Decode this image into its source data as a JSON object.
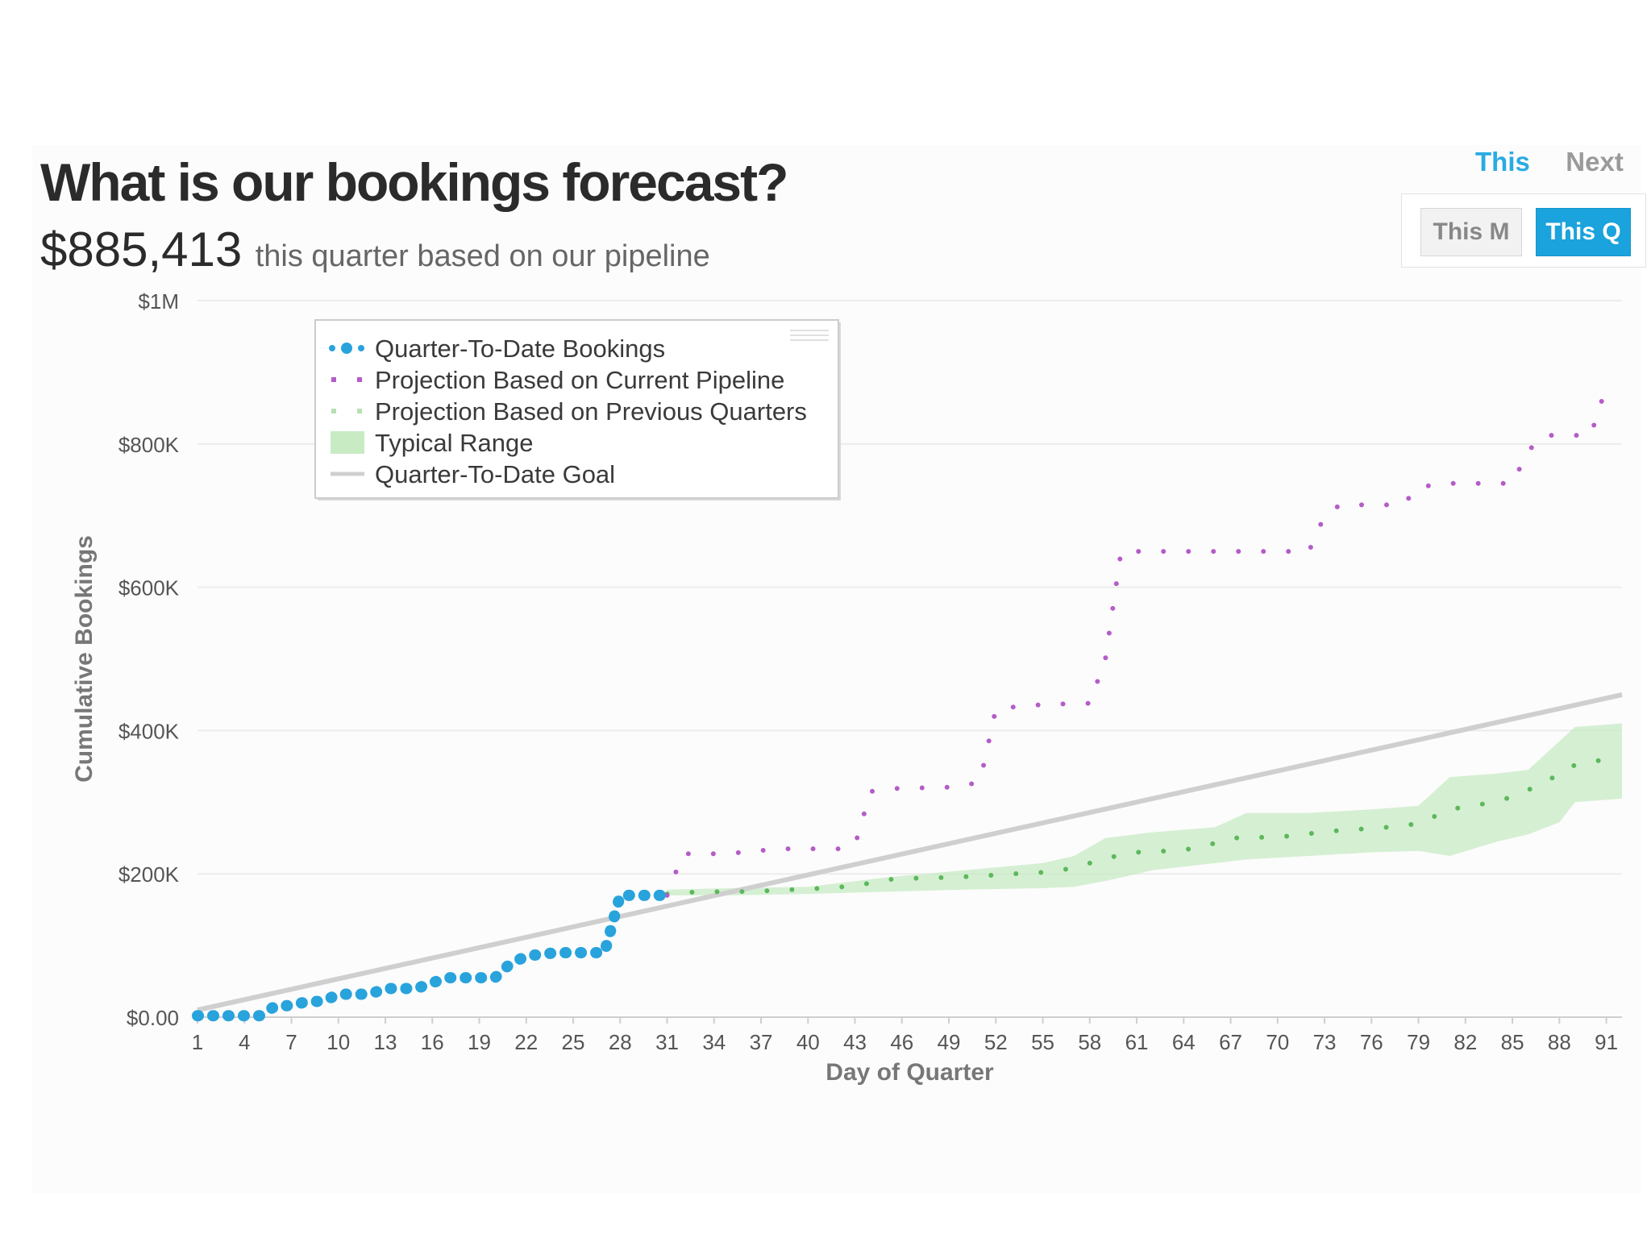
{
  "header": {
    "title": "What is our bookings forecast?",
    "amount": "$885,413",
    "caption": "this quarter based on our pipeline"
  },
  "period_toggle": {
    "this_label": "This",
    "next_label": "Next"
  },
  "range_buttons": {
    "month_label": "This M",
    "quarter_label": "This Q"
  },
  "colors": {
    "qtd": "#29a3dc",
    "pipeline": "#b45cc8",
    "previous": "#5cb85c",
    "range": "#c8ebc4",
    "goal": "#cfcfcf",
    "active": "#29abe2"
  },
  "chart_data": {
    "type": "line",
    "title": "",
    "xlabel": "Day of Quarter",
    "ylabel": "Cumulative Bookings",
    "xlim": [
      1,
      92
    ],
    "ylim": [
      0,
      1000000
    ],
    "x_ticks": [
      1,
      4,
      7,
      10,
      13,
      16,
      19,
      22,
      25,
      28,
      31,
      34,
      37,
      40,
      43,
      46,
      49,
      52,
      55,
      58,
      61,
      64,
      67,
      70,
      73,
      76,
      79,
      82,
      85,
      88,
      91
    ],
    "y_ticks": [
      {
        "value": 0,
        "label": "$0.00"
      },
      {
        "value": 200000,
        "label": "$200K"
      },
      {
        "value": 400000,
        "label": "$400K"
      },
      {
        "value": 600000,
        "label": "$600K"
      },
      {
        "value": 800000,
        "label": "$800K"
      },
      {
        "value": 1000000,
        "label": "$1M"
      }
    ],
    "legend_position": "top-left",
    "series": [
      {
        "name": "Quarter-To-Date Bookings",
        "style": "dotted-large",
        "points": [
          [
            1,
            2000
          ],
          [
            2,
            2000
          ],
          [
            3,
            2000
          ],
          [
            4,
            2000
          ],
          [
            5,
            2000
          ],
          [
            6,
            16000
          ],
          [
            7,
            16000
          ],
          [
            8,
            22000
          ],
          [
            9,
            22000
          ],
          [
            10,
            32000
          ],
          [
            11,
            32000
          ],
          [
            12,
            32000
          ],
          [
            13,
            40000
          ],
          [
            14,
            40000
          ],
          [
            15,
            40000
          ],
          [
            16,
            48000
          ],
          [
            17,
            55000
          ],
          [
            18,
            55000
          ],
          [
            19,
            55000
          ],
          [
            20,
            55000
          ],
          [
            21,
            75000
          ],
          [
            22,
            85000
          ],
          [
            23,
            88000
          ],
          [
            24,
            90000
          ],
          [
            25,
            90000
          ],
          [
            26,
            90000
          ],
          [
            27,
            90000
          ],
          [
            28,
            170000
          ],
          [
            29,
            170000
          ],
          [
            30,
            170000
          ],
          [
            31,
            170000
          ]
        ]
      },
      {
        "name": "Projection Based on Current Pipeline",
        "style": "dotted",
        "points": [
          [
            31,
            170000
          ],
          [
            32,
            228000
          ],
          [
            34,
            228000
          ],
          [
            36,
            230000
          ],
          [
            38,
            235000
          ],
          [
            40,
            235000
          ],
          [
            42,
            235000
          ],
          [
            43,
            240000
          ],
          [
            44,
            315000
          ],
          [
            46,
            320000
          ],
          [
            48,
            320000
          ],
          [
            50,
            322000
          ],
          [
            51,
            330000
          ],
          [
            52,
            430000
          ],
          [
            54,
            435000
          ],
          [
            56,
            437000
          ],
          [
            58,
            438000
          ],
          [
            59,
            500000
          ],
          [
            60,
            650000
          ],
          [
            62,
            650000
          ],
          [
            64,
            650000
          ],
          [
            66,
            650000
          ],
          [
            68,
            650000
          ],
          [
            70,
            650000
          ],
          [
            72,
            650000
          ],
          [
            73,
            700000
          ],
          [
            74,
            715000
          ],
          [
            76,
            715000
          ],
          [
            78,
            715000
          ],
          [
            79,
            740000
          ],
          [
            81,
            745000
          ],
          [
            83,
            745000
          ],
          [
            85,
            745000
          ],
          [
            86,
            790000
          ],
          [
            87,
            812000
          ],
          [
            89,
            812000
          ],
          [
            90,
            812000
          ],
          [
            91,
            880000
          ]
        ]
      },
      {
        "name": "Projection Based on Previous Quarters",
        "style": "dotted",
        "points": [
          [
            31,
            172000
          ],
          [
            33,
            175000
          ],
          [
            35,
            175000
          ],
          [
            37,
            176000
          ],
          [
            39,
            178000
          ],
          [
            41,
            180000
          ],
          [
            43,
            183000
          ],
          [
            45,
            192000
          ],
          [
            47,
            194000
          ],
          [
            49,
            195000
          ],
          [
            51,
            197000
          ],
          [
            53,
            200000
          ],
          [
            55,
            202000
          ],
          [
            57,
            208000
          ],
          [
            59,
            222000
          ],
          [
            61,
            230000
          ],
          [
            63,
            232000
          ],
          [
            65,
            236000
          ],
          [
            67,
            250000
          ],
          [
            69,
            251000
          ],
          [
            71,
            253000
          ],
          [
            73,
            259000
          ],
          [
            75,
            262000
          ],
          [
            77,
            265000
          ],
          [
            79,
            270000
          ],
          [
            81,
            290000
          ],
          [
            83,
            297000
          ],
          [
            85,
            307000
          ],
          [
            87,
            327000
          ],
          [
            89,
            352000
          ],
          [
            91,
            360000
          ]
        ]
      },
      {
        "name": "Typical Range",
        "style": "band",
        "x": [
          31,
          35,
          40,
          45,
          50,
          55,
          57,
          59,
          62,
          66,
          68,
          72,
          76,
          79,
          81,
          84,
          86,
          88,
          89,
          92
        ],
        "lower": [
          170000,
          170000,
          172000,
          175000,
          178000,
          180000,
          182000,
          190000,
          205000,
          215000,
          220000,
          225000,
          230000,
          232000,
          225000,
          245000,
          255000,
          272000,
          300000,
          305000
        ],
        "upper": [
          178000,
          180000,
          182000,
          195000,
          205000,
          215000,
          225000,
          250000,
          258000,
          265000,
          285000,
          285000,
          290000,
          295000,
          335000,
          340000,
          345000,
          385000,
          405000,
          410000
        ]
      },
      {
        "name": "Quarter-To-Date Goal",
        "style": "solid",
        "points": [
          [
            1,
            10000
          ],
          [
            92,
            450000
          ]
        ]
      }
    ]
  }
}
